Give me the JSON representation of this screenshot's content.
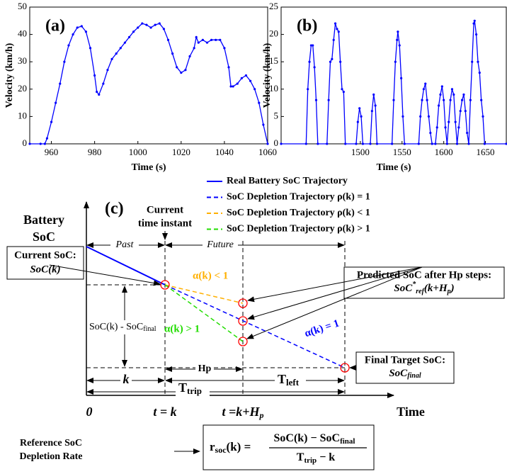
{
  "chart_data": [
    {
      "type": "line",
      "label": "(a)",
      "x_label": "Time (s)",
      "y_label": "Velocity (km/h)",
      "color": "#0000ff",
      "xlim": [
        950,
        1060
      ],
      "ylim": [
        0,
        50
      ],
      "xticks": [
        960,
        980,
        1000,
        1020,
        1040,
        1060
      ],
      "yticks": [
        0,
        10,
        20,
        30,
        40,
        50
      ],
      "x": [
        950,
        955,
        957,
        958,
        960,
        962,
        964,
        966,
        968,
        970,
        972,
        974,
        976,
        978,
        980,
        981,
        982,
        984,
        986,
        988,
        990,
        992,
        994,
        996,
        998,
        1000,
        1002,
        1004,
        1006,
        1008,
        1010,
        1012,
        1014,
        1016,
        1018,
        1020,
        1022,
        1024,
        1026,
        1027,
        1028,
        1030,
        1032,
        1034,
        1036,
        1038,
        1040,
        1042,
        1043,
        1044,
        1046,
        1048,
        1050,
        1052,
        1054,
        1056,
        1058,
        1060
      ],
      "values": [
        0,
        0,
        0,
        2,
        8,
        15,
        22,
        30,
        36,
        40,
        42.5,
        43,
        41,
        35,
        25,
        19,
        18,
        22,
        27,
        31,
        33,
        35,
        37,
        39,
        41,
        42.5,
        44,
        43.5,
        42.5,
        43.5,
        44,
        42,
        38,
        33,
        28,
        26,
        27,
        32,
        35,
        39,
        37,
        38,
        37,
        38,
        38,
        38,
        35,
        28,
        21,
        21,
        22,
        24,
        25,
        23,
        20,
        15,
        7,
        0
      ]
    },
    {
      "type": "line",
      "label": "(b)",
      "x_label": "Time (s)",
      "y_label": "Velocity (km/h)",
      "color": "#0000ff",
      "xlim": [
        1405,
        1675
      ],
      "ylim": [
        0,
        25
      ],
      "xticks": [
        1500,
        1550,
        1600,
        1650
      ],
      "yticks": [
        0,
        5,
        10,
        15,
        20,
        25
      ],
      "x": [
        1405,
        1435,
        1437,
        1439,
        1441,
        1443,
        1445,
        1447,
        1449,
        1460,
        1462,
        1464,
        1466,
        1468,
        1470,
        1472,
        1474,
        1476,
        1478,
        1480,
        1482,
        1495,
        1497,
        1499,
        1501,
        1503,
        1512,
        1514,
        1516,
        1518,
        1520,
        1538,
        1540,
        1542,
        1544,
        1545,
        1547,
        1549,
        1551,
        1553,
        1570,
        1572,
        1574,
        1576,
        1578,
        1580,
        1582,
        1584,
        1586,
        1590,
        1592,
        1594,
        1596,
        1598,
        1600,
        1602,
        1604,
        1606,
        1608,
        1610,
        1612,
        1614,
        1616,
        1618,
        1620,
        1622,
        1624,
        1626,
        1628,
        1630,
        1632,
        1634,
        1636,
        1637,
        1639,
        1641,
        1643,
        1645,
        1647,
        1649,
        1675
      ],
      "values": [
        0,
        0,
        10,
        15,
        18,
        18,
        14,
        8,
        0,
        0,
        8,
        15,
        15.5,
        19,
        22,
        21,
        20.5,
        15,
        10,
        9.5,
        0,
        0,
        4,
        6.5,
        5,
        0,
        0,
        6,
        9,
        7,
        0,
        0,
        8,
        15,
        19,
        20.5,
        18,
        12,
        5,
        0,
        0,
        5,
        8,
        10,
        11,
        8,
        5,
        2,
        0,
        0,
        3,
        7,
        9,
        10.5,
        8,
        3,
        0,
        4,
        8,
        10,
        9,
        4,
        0,
        3,
        6,
        8,
        9,
        6,
        2,
        0,
        8,
        15,
        22,
        22.5,
        20,
        15,
        13,
        8,
        5,
        0,
        0
      ]
    }
  ],
  "diagram": {
    "label": "(c)",
    "legend": [
      {
        "label": "Real Battery SoC Trajectory",
        "color": "#0000ff",
        "style": "solid"
      },
      {
        "label": "SoC Depletion Trajectory ρ(k) = 1",
        "color": "#0000ff",
        "style": "dashed"
      },
      {
        "label": "SoC Depletion Trajectory ρ(k) < 1",
        "color": "#ffb000",
        "style": "dashed"
      },
      {
        "label": "SoC Depletion Trajectory ρ(k) > 1",
        "color": "#22dd00",
        "style": "dashed"
      }
    ],
    "y_axis_label": [
      "Battery",
      "SoC"
    ],
    "x_axis_label": "Time",
    "current_time": [
      "Current",
      "time instant"
    ],
    "past": "Past",
    "future": "Future",
    "current_soc": {
      "title": "Current SoC:",
      "value": "SoC(k)"
    },
    "alpha_lt": "α(k) < 1",
    "alpha_gt": "α(k) > 1",
    "alpha_eq": "α(k) = 1",
    "soc_diff": {
      "text": "SoC(k) - SoC",
      "sub": "final"
    },
    "predicted": {
      "title": "Predicted SoC after Hp steps:",
      "value": "SoC",
      "sup": "*",
      "sub": "ref",
      "tail": "(k+H",
      "tail_sub": "p",
      "close": ")"
    },
    "final_target": {
      "title": "Final Target SoC:",
      "value": "SoC",
      "sub": "final"
    },
    "hp": "Hp",
    "k": "k",
    "t_trip": {
      "text": "T",
      "sub": "trip"
    },
    "t_left": {
      "text": "T",
      "sub": "left"
    },
    "x_ticks": [
      "0",
      "t = k",
      {
        "text": "t =k+H",
        "sub": "p"
      }
    ],
    "reference": [
      "Reference SoC",
      "Depletion Rate"
    ],
    "formula": {
      "lhs": "r",
      "lhs_sub": "soc",
      "lhs_tail": "(k) =",
      "num": "SoC(k) − SoC",
      "num_sub": "final",
      "den": "T",
      "den_sub": "trip",
      "den_tail": " − k"
    }
  }
}
